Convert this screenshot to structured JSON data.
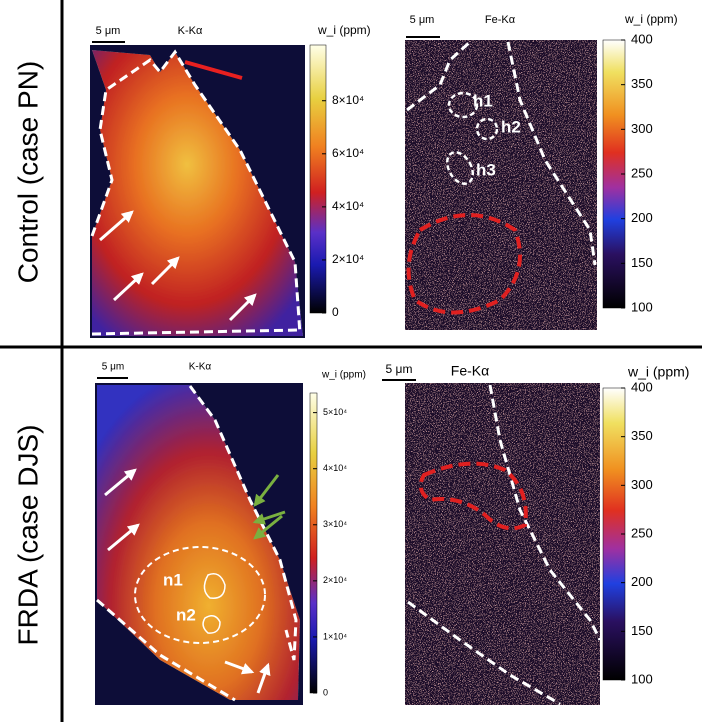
{
  "rows": [
    {
      "label": "Control (case PN)",
      "panels": [
        {
          "scale_bar": "5 μm",
          "element": "K-Kα",
          "colorbar": {
            "title": "w_i (ppm)",
            "lim": [
              0,
              101000
            ],
            "ticks": [
              0,
              {
                "value": 20000,
                "label": "2×10⁴"
              },
              {
                "value": 40000,
                "label": "4×10⁴"
              },
              {
                "value": 60000,
                "label": "6×10⁴"
              },
              {
                "value": 80000,
                "label": "8×10⁴"
              }
            ]
          }
        },
        {
          "scale_bar": "5 μm",
          "element": "Fe-Kα",
          "colorbar": {
            "title": "w_i (ppm)",
            "lim": [
              100,
              400
            ],
            "ticks": [
              100,
              150,
              200,
              250,
              300,
              350,
              400
            ]
          },
          "annotations": [
            "h1",
            "h2",
            "h3"
          ]
        }
      ]
    },
    {
      "label": "FRDA (case DJS)",
      "panels": [
        {
          "scale_bar": "5 μm",
          "element": "K-Kα",
          "colorbar": {
            "title": "w_i (ppm)",
            "lim": [
              0,
              53500
            ],
            "ticks": [
              0,
              {
                "value": 10000,
                "label": "1×10⁴"
              },
              {
                "value": 20000,
                "label": "2×10⁴"
              },
              {
                "value": 30000,
                "label": "3×10⁴"
              },
              {
                "value": 40000,
                "label": "4×10⁴"
              },
              {
                "value": 50000,
                "label": "5×10⁴"
              }
            ]
          },
          "annotations": [
            "n1",
            "n2"
          ]
        },
        {
          "scale_bar": "5 μm",
          "element": "Fe-Kα",
          "colorbar": {
            "title": "w_i (ppm)",
            "lim": [
              100,
              400
            ],
            "ticks": [
              100,
              150,
              200,
              250,
              300,
              350,
              400
            ]
          }
        }
      ]
    }
  ]
}
